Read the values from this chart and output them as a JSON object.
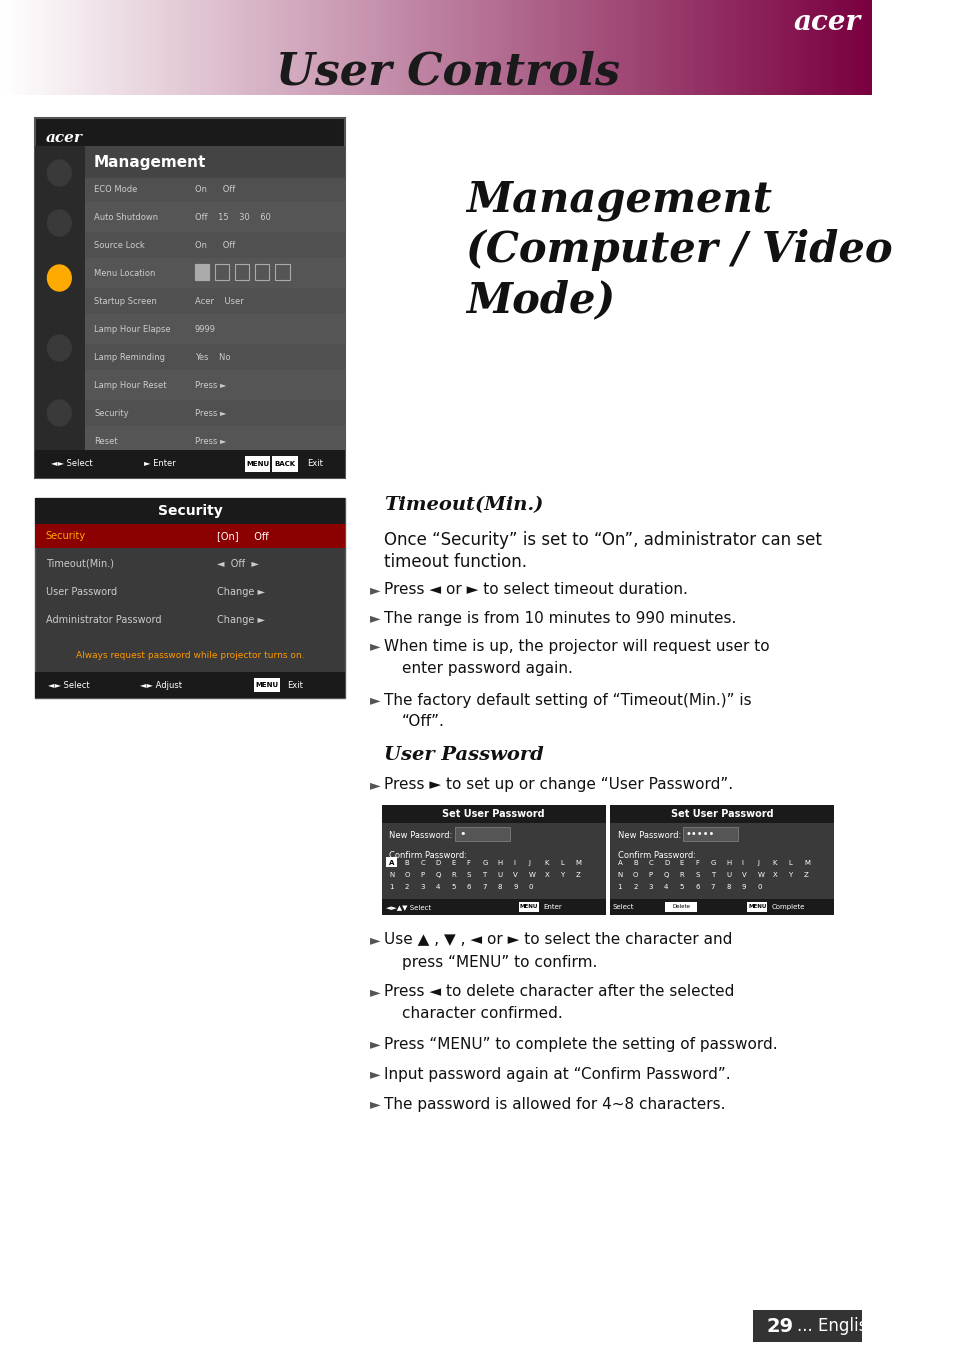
{
  "page_bg": "#ffffff",
  "header_gradient_left": "#ffffff",
  "header_gradient_right": "#7a0040",
  "header_text": "User Controls",
  "header_text_color": "#1a1a1a",
  "acer_logo_color": "#ffffff",
  "title_italic": "Management\n(Computer / Video\nMode)",
  "section1_title": "Timeout(Min.)",
  "section2_title": "User Password",
  "body_text_color": "#1a1a1a",
  "bullet_color": "#4a4a4a",
  "menu_bg": "#555555",
  "menu_sidebar_bg": "#222222",
  "menu_header_bg": "#1a1a1a",
  "menu_title": "Management",
  "security_title": "Security",
  "page_number": "29",
  "page_label": "... English",
  "footer_bg": "#333333",
  "footer_text_color": "#ffffff"
}
